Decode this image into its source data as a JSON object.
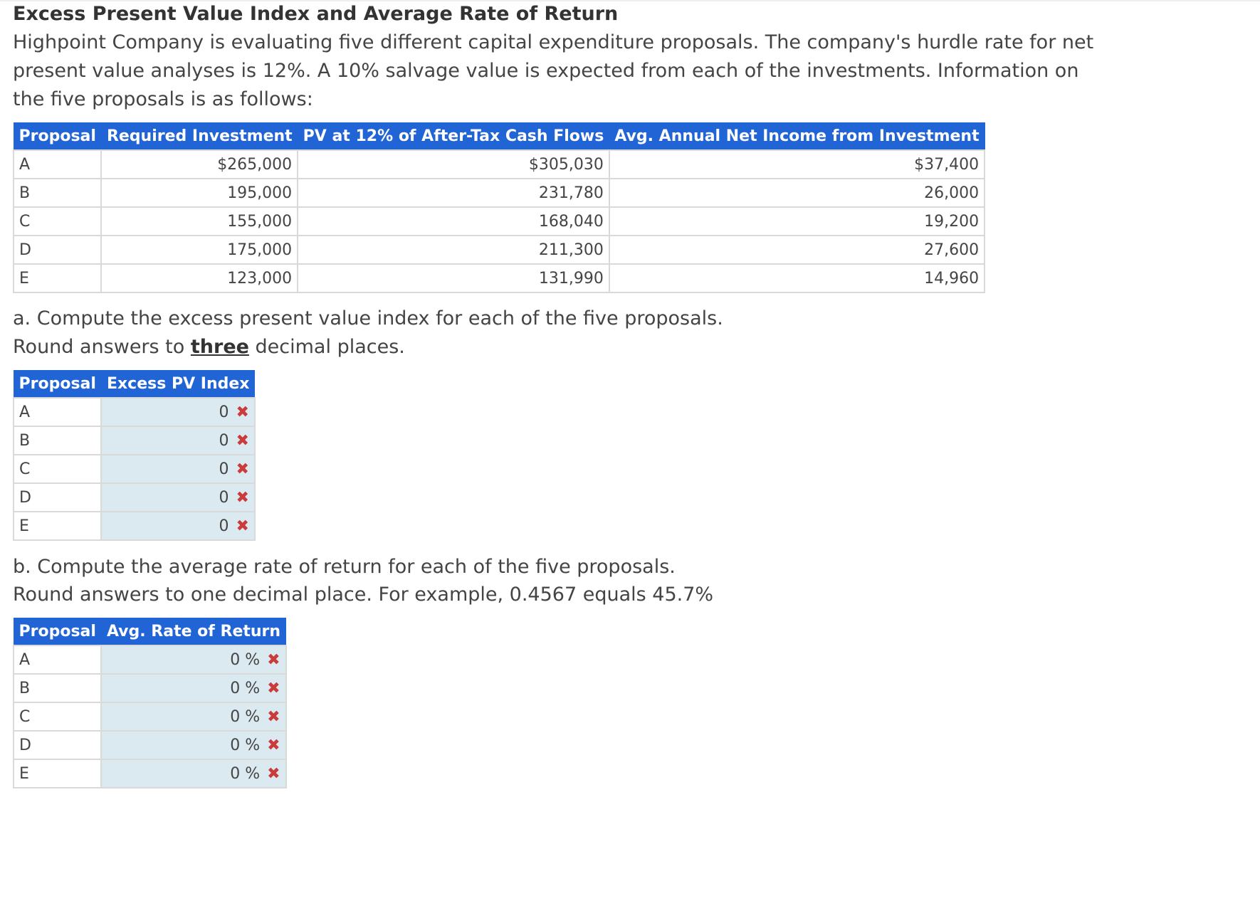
{
  "title": "Excess Present Value Index and Average Rate of Return",
  "intro": "Highpoint Company is evaluating five different capital expenditure proposals. The company's hurdle rate for net present value analyses is 12%. A 10% salvage value is expected from each of the investments. Information on the five proposals is as follows:",
  "info_table": {
    "headers": [
      "Proposal",
      "Required Investment",
      "PV at 12% of After-Tax Cash Flows",
      "Avg. Annual Net Income from Investment"
    ],
    "rows": [
      [
        "A",
        "$265,000",
        "$305,030",
        "$37,400"
      ],
      [
        "B",
        "195,000",
        "231,780",
        "26,000"
      ],
      [
        "C",
        "155,000",
        "168,040",
        "19,200"
      ],
      [
        "D",
        "175,000",
        "211,300",
        "27,600"
      ],
      [
        "E",
        "123,000",
        "131,990",
        "14,960"
      ]
    ]
  },
  "part_a": {
    "prompt": "a. Compute the excess present value index for each of the five proposals.",
    "round_pre": "Round answers to ",
    "round_emph": "three",
    "round_post": " decimal places.",
    "headers": [
      "Proposal",
      "Excess PV Index"
    ],
    "rows": [
      {
        "proposal": "A",
        "value": "0",
        "mark": "✖"
      },
      {
        "proposal": "B",
        "value": "0",
        "mark": "✖"
      },
      {
        "proposal": "C",
        "value": "0",
        "mark": "✖"
      },
      {
        "proposal": "D",
        "value": "0",
        "mark": "✖"
      },
      {
        "proposal": "E",
        "value": "0",
        "mark": "✖"
      }
    ]
  },
  "part_b": {
    "prompt": "b. Compute the average rate of return for each of the five proposals.",
    "round": "Round answers to one decimal place. For example, 0.4567 equals 45.7%",
    "headers": [
      "Proposal",
      "Avg. Rate of Return"
    ],
    "unit": "%",
    "rows": [
      {
        "proposal": "A",
        "value": "0",
        "mark": "✖"
      },
      {
        "proposal": "B",
        "value": "0",
        "mark": "✖"
      },
      {
        "proposal": "C",
        "value": "0",
        "mark": "✖"
      },
      {
        "proposal": "D",
        "value": "0",
        "mark": "✖"
      },
      {
        "proposal": "E",
        "value": "0",
        "mark": "✖"
      }
    ]
  },
  "colors": {
    "header_bg": "#2164d6",
    "answer_bg": "#dbeaf1",
    "incorrect": "#cc3b3b"
  }
}
